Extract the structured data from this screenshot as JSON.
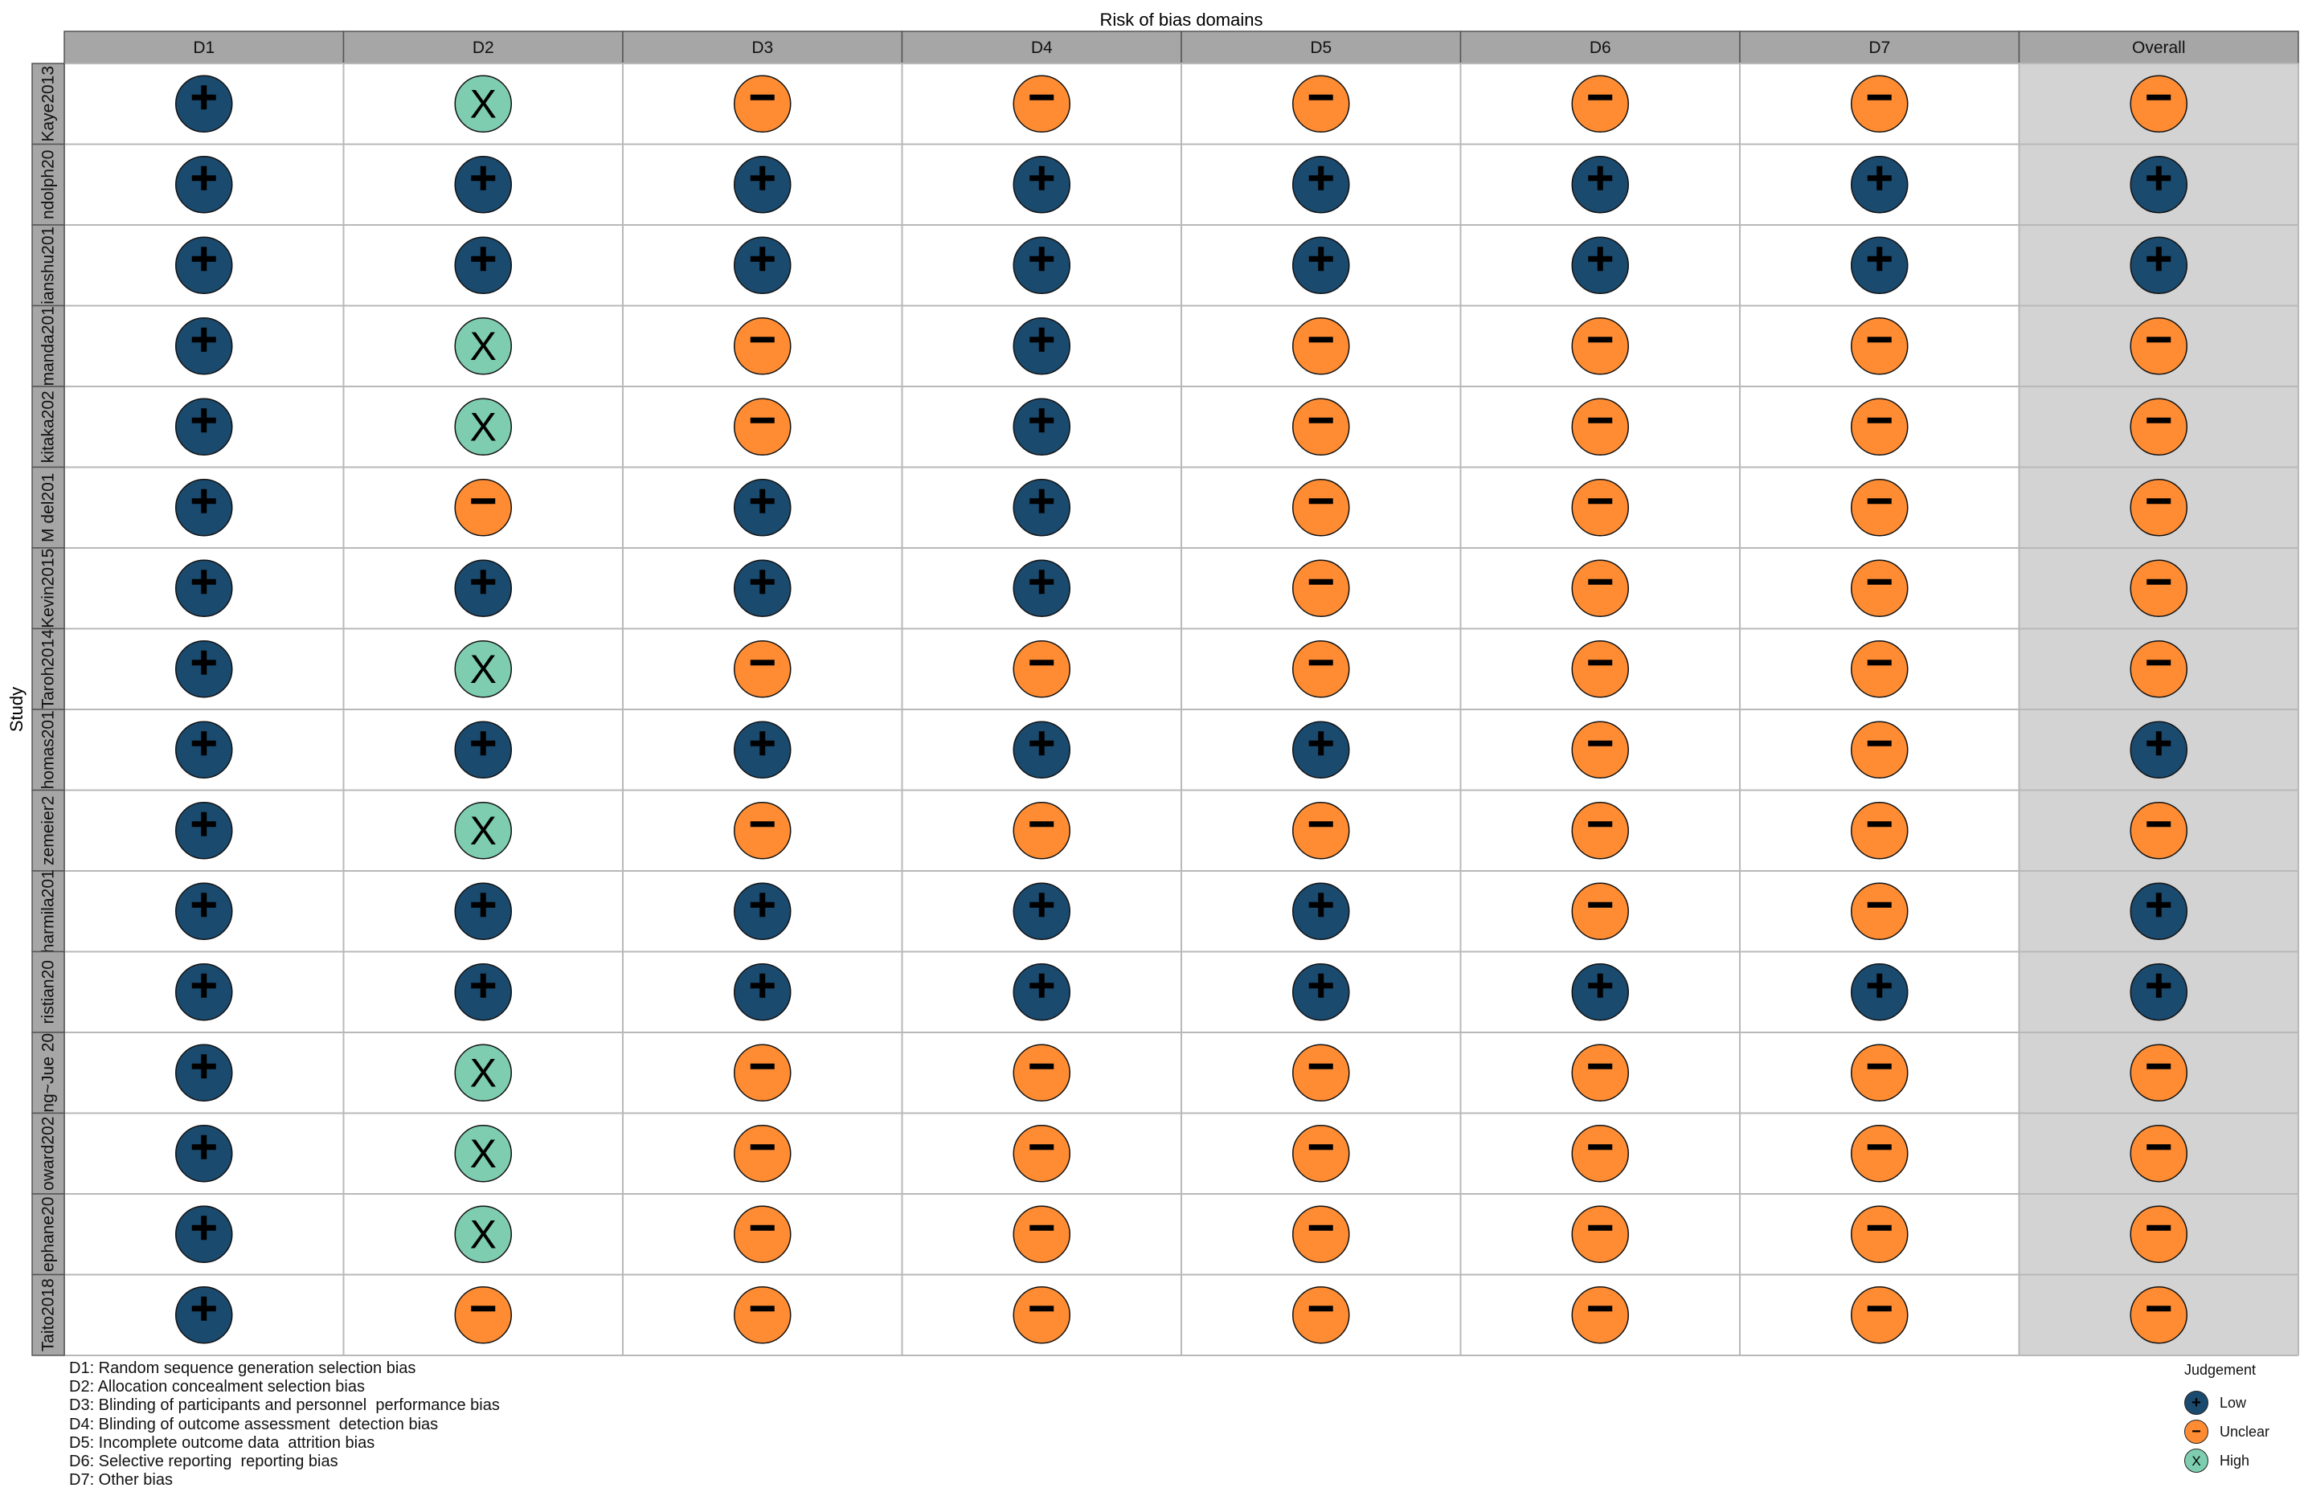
{
  "chart_data": {
    "type": "table",
    "title": "Risk of bias domains",
    "ylabel": "Study",
    "columns": [
      "D1",
      "D2",
      "D3",
      "D4",
      "D5",
      "D6",
      "D7",
      "Overall"
    ],
    "rows": [
      {
        "study": "Kaye2013",
        "judgements": [
          "Low",
          "High",
          "Unclear",
          "Unclear",
          "Unclear",
          "Unclear",
          "Unclear",
          "Unclear"
        ]
      },
      {
        "study": "ndolph20",
        "judgements": [
          "Low",
          "Low",
          "Low",
          "Low",
          "Low",
          "Low",
          "Low",
          "Low"
        ]
      },
      {
        "study": "ianshu201",
        "judgements": [
          "Low",
          "Low",
          "Low",
          "Low",
          "Low",
          "Low",
          "Low",
          "Low"
        ]
      },
      {
        "study": "manda201",
        "judgements": [
          "Low",
          "High",
          "Unclear",
          "Low",
          "Unclear",
          "Unclear",
          "Unclear",
          "Unclear"
        ]
      },
      {
        "study": "kitaka202",
        "judgements": [
          "Low",
          "High",
          "Unclear",
          "Low",
          "Unclear",
          "Unclear",
          "Unclear",
          "Unclear"
        ]
      },
      {
        "study": "M del201",
        "judgements": [
          "Low",
          "Unclear",
          "Low",
          "Low",
          "Unclear",
          "Unclear",
          "Unclear",
          "Unclear"
        ]
      },
      {
        "study": "Kevin2015",
        "judgements": [
          "Low",
          "Low",
          "Low",
          "Low",
          "Unclear",
          "Unclear",
          "Unclear",
          "Unclear"
        ]
      },
      {
        "study": "Taroh2014",
        "judgements": [
          "Low",
          "High",
          "Unclear",
          "Unclear",
          "Unclear",
          "Unclear",
          "Unclear",
          "Unclear"
        ]
      },
      {
        "study": "homas201",
        "judgements": [
          "Low",
          "Low",
          "Low",
          "Low",
          "Low",
          "Unclear",
          "Unclear",
          "Low"
        ]
      },
      {
        "study": "zemeier2",
        "judgements": [
          "Low",
          "High",
          "Unclear",
          "Unclear",
          "Unclear",
          "Unclear",
          "Unclear",
          "Unclear"
        ]
      },
      {
        "study": "harmila201",
        "judgements": [
          "Low",
          "Low",
          "Low",
          "Low",
          "Low",
          "Unclear",
          "Unclear",
          "Low"
        ]
      },
      {
        "study": "ristian20",
        "judgements": [
          "Low",
          "Low",
          "Low",
          "Low",
          "Low",
          "Low",
          "Low",
          "Low"
        ]
      },
      {
        "study": "ng~Jue 20",
        "judgements": [
          "Low",
          "High",
          "Unclear",
          "Unclear",
          "Unclear",
          "Unclear",
          "Unclear",
          "Unclear"
        ]
      },
      {
        "study": "oward202",
        "judgements": [
          "Low",
          "High",
          "Unclear",
          "Unclear",
          "Unclear",
          "Unclear",
          "Unclear",
          "Unclear"
        ]
      },
      {
        "study": "ephane20",
        "judgements": [
          "Low",
          "High",
          "Unclear",
          "Unclear",
          "Unclear",
          "Unclear",
          "Unclear",
          "Unclear"
        ]
      },
      {
        "study": "Taito2018",
        "judgements": [
          "Low",
          "Unclear",
          "Unclear",
          "Unclear",
          "Unclear",
          "Unclear",
          "Unclear",
          "Unclear"
        ]
      }
    ],
    "symbols": {
      "Low": "+",
      "Unclear": "−",
      "High": "X"
    },
    "colors": {
      "Low": "#1b4a6f",
      "Unclear": "#ff8c33",
      "High": "#7ecdb1",
      "header": "#a6a6a6",
      "overall_bg": "#d3d3d3"
    }
  },
  "domain_legend": [
    "D1: Random sequence generation selection bias",
    "D2: Allocation concealment selection bias",
    "D3: Blinding of participants and personnel  performance bias",
    "D4: Blinding of outcome assessment  detection bias",
    "D5: Incomplete outcome data  attrition bias",
    "D6: Selective reporting  reporting bias",
    "D7: Other bias"
  ],
  "judgement_legend": {
    "title": "Judgement",
    "items": [
      {
        "label": "Low",
        "symbol": "+",
        "color": "#1b4a6f"
      },
      {
        "label": "Unclear",
        "symbol": "−",
        "color": "#ff8c33"
      },
      {
        "label": "High",
        "symbol": "X",
        "color": "#7ecdb1"
      }
    ]
  }
}
